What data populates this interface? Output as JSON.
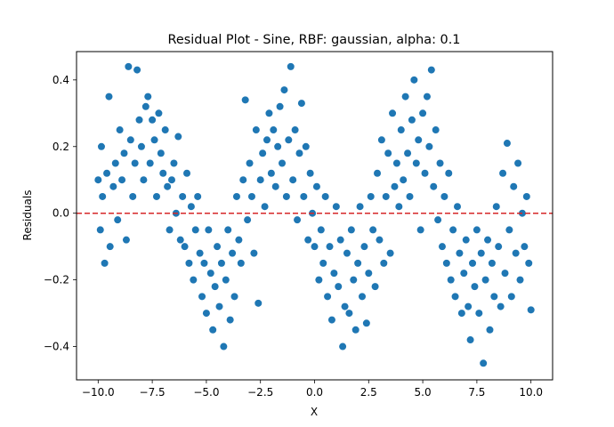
{
  "chart_data": {
    "type": "scatter",
    "title": "Residual Plot - Sine, RBF: gaussian, alpha: 0.1",
    "xlabel": "X",
    "ylabel": "Residuals",
    "xlim": [
      -11.0,
      11.0
    ],
    "ylim": [
      -0.5,
      0.485
    ],
    "xticks": [
      -10.0,
      -7.5,
      -5.0,
      -2.5,
      0.0,
      2.5,
      5.0,
      7.5,
      10.0
    ],
    "xtick_labels": [
      "−10.0",
      "−7.5",
      "−5.0",
      "−2.5",
      "0.0",
      "2.5",
      "5.0",
      "7.5",
      "10.0"
    ],
    "yticks": [
      -0.4,
      -0.2,
      0.0,
      0.2,
      0.4
    ],
    "ytick_labels": [
      "−0.4",
      "−0.2",
      "0.0",
      "0.2",
      "0.4"
    ],
    "grid": false,
    "point_color": "#1f77b4",
    "reference_line": {
      "y": 0.0,
      "color": "#d62728",
      "style": "dashed"
    },
    "series": [
      {
        "points": [
          [
            -10.0,
            0.1
          ],
          [
            -9.9,
            -0.05
          ],
          [
            -9.85,
            0.2
          ],
          [
            -9.8,
            0.05
          ],
          [
            -9.7,
            -0.15
          ],
          [
            -9.6,
            0.12
          ],
          [
            -9.5,
            0.35
          ],
          [
            -9.45,
            -0.1
          ],
          [
            -9.3,
            0.08
          ],
          [
            -9.2,
            0.15
          ],
          [
            -9.1,
            -0.02
          ],
          [
            -9.0,
            0.25
          ],
          [
            -8.9,
            0.1
          ],
          [
            -8.8,
            0.18
          ],
          [
            -8.7,
            -0.08
          ],
          [
            -8.6,
            0.44
          ],
          [
            -8.5,
            0.22
          ],
          [
            -8.4,
            0.05
          ],
          [
            -8.3,
            0.15
          ],
          [
            -8.2,
            0.43
          ],
          [
            -8.1,
            0.28
          ],
          [
            -8.0,
            0.2
          ],
          [
            -7.9,
            0.1
          ],
          [
            -7.8,
            0.32
          ],
          [
            -7.7,
            0.35
          ],
          [
            -7.6,
            0.15
          ],
          [
            -7.5,
            0.28
          ],
          [
            -7.4,
            0.22
          ],
          [
            -7.3,
            0.05
          ],
          [
            -7.2,
            0.3
          ],
          [
            -7.1,
            0.18
          ],
          [
            -7.0,
            0.12
          ],
          [
            -6.9,
            0.25
          ],
          [
            -6.8,
            0.08
          ],
          [
            -6.7,
            -0.05
          ],
          [
            -6.6,
            0.1
          ],
          [
            -6.5,
            0.15
          ],
          [
            -6.4,
            0.0
          ],
          [
            -6.3,
            0.23
          ],
          [
            -6.2,
            -0.08
          ],
          [
            -6.1,
            0.05
          ],
          [
            -6.0,
            -0.1
          ],
          [
            -5.9,
            0.12
          ],
          [
            -5.8,
            -0.15
          ],
          [
            -5.7,
            0.02
          ],
          [
            -5.6,
            -0.2
          ],
          [
            -5.5,
            -0.05
          ],
          [
            -5.4,
            0.05
          ],
          [
            -5.3,
            -0.12
          ],
          [
            -5.2,
            -0.25
          ],
          [
            -5.1,
            -0.15
          ],
          [
            -5.0,
            -0.3
          ],
          [
            -4.9,
            -0.05
          ],
          [
            -4.8,
            -0.18
          ],
          [
            -4.7,
            -0.35
          ],
          [
            -4.6,
            -0.22
          ],
          [
            -4.5,
            -0.1
          ],
          [
            -4.4,
            -0.28
          ],
          [
            -4.3,
            -0.15
          ],
          [
            -4.2,
            -0.4
          ],
          [
            -4.1,
            -0.2
          ],
          [
            -4.0,
            -0.05
          ],
          [
            -3.9,
            -0.32
          ],
          [
            -3.8,
            -0.12
          ],
          [
            -3.7,
            -0.25
          ],
          [
            -3.6,
            0.05
          ],
          [
            -3.5,
            -0.08
          ],
          [
            -3.4,
            -0.15
          ],
          [
            -3.3,
            0.1
          ],
          [
            -3.2,
            0.34
          ],
          [
            -3.1,
            -0.02
          ],
          [
            -3.0,
            0.15
          ],
          [
            -2.9,
            0.05
          ],
          [
            -2.8,
            -0.12
          ],
          [
            -2.7,
            0.25
          ],
          [
            -2.6,
            -0.27
          ],
          [
            -2.5,
            0.1
          ],
          [
            -2.4,
            0.18
          ],
          [
            -2.3,
            0.02
          ],
          [
            -2.2,
            0.22
          ],
          [
            -2.1,
            0.3
          ],
          [
            -2.0,
            0.12
          ],
          [
            -1.9,
            0.25
          ],
          [
            -1.8,
            0.08
          ],
          [
            -1.7,
            0.2
          ],
          [
            -1.6,
            0.32
          ],
          [
            -1.5,
            0.15
          ],
          [
            -1.4,
            0.37
          ],
          [
            -1.3,
            0.05
          ],
          [
            -1.2,
            0.22
          ],
          [
            -1.1,
            0.44
          ],
          [
            -1.0,
            0.1
          ],
          [
            -0.9,
            0.25
          ],
          [
            -0.8,
            -0.02
          ],
          [
            -0.7,
            0.18
          ],
          [
            -0.6,
            0.33
          ],
          [
            -0.5,
            0.05
          ],
          [
            -0.4,
            0.2
          ],
          [
            -0.3,
            -0.08
          ],
          [
            -0.2,
            0.12
          ],
          [
            -0.1,
            0.0
          ],
          [
            0.0,
            -0.1
          ],
          [
            0.1,
            0.08
          ],
          [
            0.2,
            -0.2
          ],
          [
            0.3,
            -0.05
          ],
          [
            0.4,
            -0.15
          ],
          [
            0.5,
            0.05
          ],
          [
            0.6,
            -0.25
          ],
          [
            0.7,
            -0.1
          ],
          [
            0.8,
            -0.32
          ],
          [
            0.9,
            -0.18
          ],
          [
            1.0,
            0.02
          ],
          [
            1.1,
            -0.22
          ],
          [
            1.2,
            -0.08
          ],
          [
            1.3,
            -0.4
          ],
          [
            1.4,
            -0.28
          ],
          [
            1.5,
            -0.12
          ],
          [
            1.6,
            -0.3
          ],
          [
            1.7,
            -0.05
          ],
          [
            1.8,
            -0.2
          ],
          [
            1.9,
            -0.35
          ],
          [
            2.0,
            -0.15
          ],
          [
            2.1,
            0.02
          ],
          [
            2.2,
            -0.25
          ],
          [
            2.3,
            -0.1
          ],
          [
            2.4,
            -0.33
          ],
          [
            2.5,
            -0.18
          ],
          [
            2.6,
            0.05
          ],
          [
            2.7,
            -0.05
          ],
          [
            2.8,
            -0.22
          ],
          [
            2.9,
            0.12
          ],
          [
            3.0,
            -0.08
          ],
          [
            3.1,
            0.22
          ],
          [
            3.2,
            -0.15
          ],
          [
            3.3,
            0.05
          ],
          [
            3.4,
            0.18
          ],
          [
            3.5,
            -0.12
          ],
          [
            3.6,
            0.3
          ],
          [
            3.7,
            0.08
          ],
          [
            3.8,
            0.15
          ],
          [
            3.9,
            0.02
          ],
          [
            4.0,
            0.25
          ],
          [
            4.1,
            0.1
          ],
          [
            4.2,
            0.35
          ],
          [
            4.3,
            0.18
          ],
          [
            4.4,
            0.05
          ],
          [
            4.5,
            0.28
          ],
          [
            4.6,
            0.4
          ],
          [
            4.7,
            0.15
          ],
          [
            4.8,
            0.22
          ],
          [
            4.9,
            -0.05
          ],
          [
            5.0,
            0.3
          ],
          [
            5.1,
            0.12
          ],
          [
            5.2,
            0.35
          ],
          [
            5.3,
            0.2
          ],
          [
            5.4,
            0.43
          ],
          [
            5.5,
            0.08
          ],
          [
            5.6,
            0.25
          ],
          [
            5.7,
            -0.02
          ],
          [
            5.8,
            0.15
          ],
          [
            5.9,
            -0.1
          ],
          [
            6.0,
            0.05
          ],
          [
            6.1,
            -0.15
          ],
          [
            6.2,
            0.12
          ],
          [
            6.3,
            -0.2
          ],
          [
            6.4,
            -0.05
          ],
          [
            6.5,
            -0.25
          ],
          [
            6.6,
            0.02
          ],
          [
            6.7,
            -0.12
          ],
          [
            6.8,
            -0.3
          ],
          [
            6.9,
            -0.18
          ],
          [
            7.0,
            -0.08
          ],
          [
            7.1,
            -0.28
          ],
          [
            7.2,
            -0.38
          ],
          [
            7.3,
            -0.15
          ],
          [
            7.4,
            -0.22
          ],
          [
            7.5,
            -0.05
          ],
          [
            7.6,
            -0.3
          ],
          [
            7.7,
            -0.12
          ],
          [
            7.8,
            -0.45
          ],
          [
            7.9,
            -0.2
          ],
          [
            8.0,
            -0.08
          ],
          [
            8.1,
            -0.35
          ],
          [
            8.2,
            -0.15
          ],
          [
            8.3,
            -0.25
          ],
          [
            8.4,
            0.02
          ],
          [
            8.5,
            -0.1
          ],
          [
            8.6,
            -0.28
          ],
          [
            8.7,
            0.12
          ],
          [
            8.8,
            -0.18
          ],
          [
            8.9,
            0.21
          ],
          [
            9.0,
            -0.05
          ],
          [
            9.1,
            -0.25
          ],
          [
            9.2,
            0.08
          ],
          [
            9.3,
            -0.12
          ],
          [
            9.4,
            0.15
          ],
          [
            9.5,
            -0.2
          ],
          [
            9.6,
            0.0
          ],
          [
            9.7,
            -0.1
          ],
          [
            9.8,
            0.05
          ],
          [
            9.9,
            -0.15
          ],
          [
            10.0,
            -0.29
          ]
        ]
      }
    ]
  }
}
